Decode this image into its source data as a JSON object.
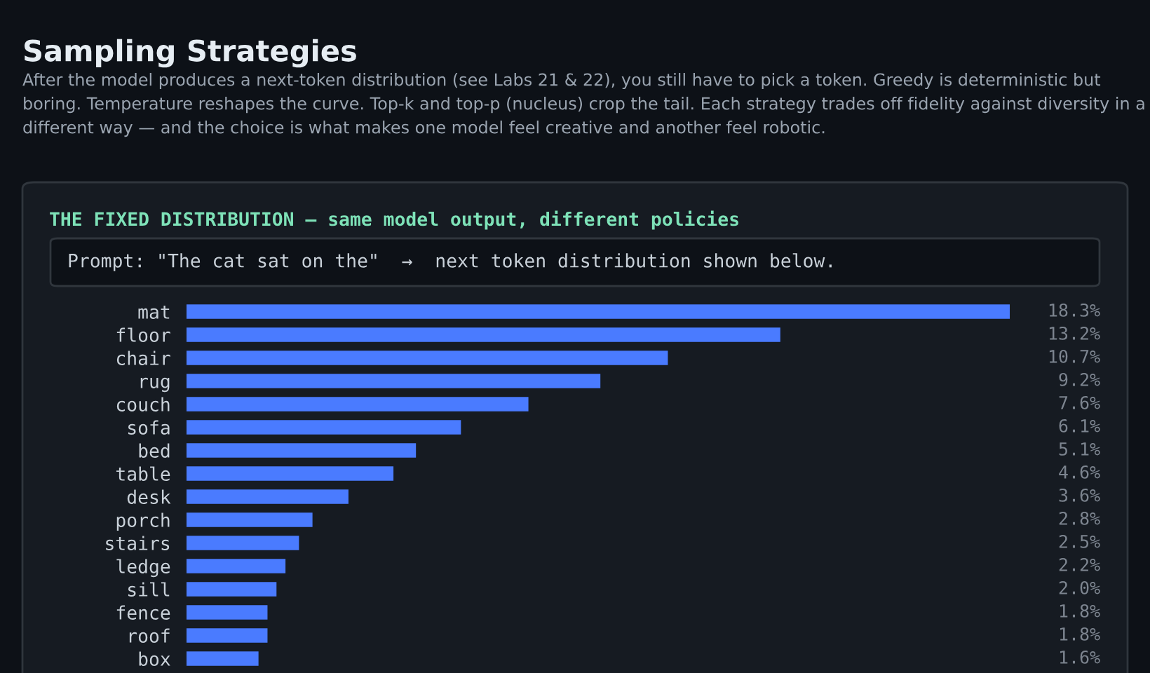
{
  "chart_data": {
    "type": "bar",
    "orientation": "horizontal",
    "title": "Sampling Strategies",
    "subtitle": "After the model produces a next-token distribution (see Labs 21 & 22), you still have to pick a token. Greedy is deterministic but boring. Temperature reshapes the curve. Top-k and top-p (nucleus) crop the tail. Each strategy trades off fidelity against diversity in a different way — and the choice is what makes one model feel creative and another feel robotic.",
    "annotations": [
      "THE FIXED DISTRIBUTION — same model output, different policies",
      "Prompt: \"The cat sat on the\"  →  next token distribution shown below."
    ],
    "categories": [
      "mat",
      "floor",
      "chair",
      "rug",
      "couch",
      "sofa",
      "bed",
      "table",
      "desk",
      "porch",
      "stairs",
      "ledge",
      "sill",
      "fence",
      "roof",
      "box"
    ],
    "values": [
      18.3,
      13.2,
      10.7,
      9.2,
      7.6,
      6.1,
      5.1,
      4.6,
      3.6,
      2.8,
      2.5,
      2.2,
      2.0,
      1.8,
      1.8,
      1.6
    ],
    "value_labels": [
      "18.3%",
      "13.2%",
      "10.7%",
      "9.2%",
      "7.6%",
      "6.1%",
      "5.1%",
      "4.6%",
      "3.6%",
      "2.8%",
      "2.5%",
      "2.2%",
      "2.0%",
      "1.8%",
      "1.8%",
      "1.6%"
    ],
    "color": "#4a7bff",
    "xlim": [
      0,
      18.3
    ],
    "tick_labels": "y",
    "legend": false
  }
}
